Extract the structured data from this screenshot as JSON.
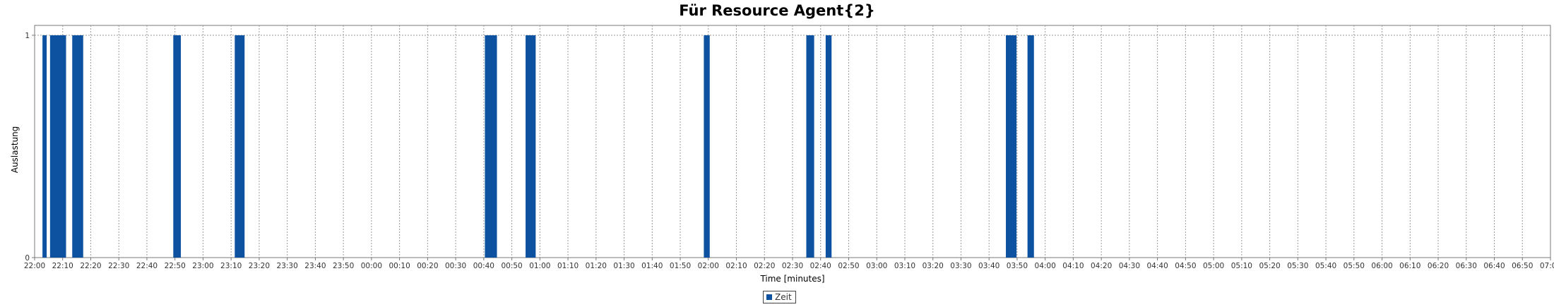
{
  "chart_data": {
    "type": "bar",
    "title": "Für Resource Agent{2}",
    "xlabel": "Time [minutes]",
    "ylabel": "Auslastung",
    "ylim": [
      0,
      1
    ],
    "yticks": [
      "0",
      "1"
    ],
    "x_range_minutes": [
      0,
      540
    ],
    "x_ticks": [
      "22:00",
      "22:10",
      "22:20",
      "22:30",
      "22:40",
      "22:50",
      "23:00",
      "23:10",
      "23:20",
      "23:30",
      "23:40",
      "23:50",
      "00:00",
      "00:10",
      "00:20",
      "00:30",
      "00:40",
      "00:50",
      "01:00",
      "01:10",
      "01:20",
      "01:30",
      "01:40",
      "01:50",
      "02:00",
      "02:10",
      "02:20",
      "02:30",
      "02:40",
      "02:50",
      "03:00",
      "03:10",
      "03:20",
      "03:30",
      "03:40",
      "03:50",
      "04:00",
      "04:10",
      "04:20",
      "04:30",
      "04:40",
      "04:50",
      "05:00",
      "05:10",
      "05:20",
      "05:30",
      "05:40",
      "05:50",
      "06:00",
      "06:10",
      "06:20",
      "06:30",
      "06:40",
      "06:50",
      "07:00"
    ],
    "grid": true,
    "legend_position": "bottom",
    "series": [
      {
        "name": "Zeit",
        "color": "#0c52a0",
        "bars": [
          {
            "start": 2.8,
            "end": 4.3,
            "value": 1
          },
          {
            "start": 5.5,
            "end": 11.2,
            "value": 1
          },
          {
            "start": 13.4,
            "end": 17.3,
            "value": 1
          },
          {
            "start": 49.4,
            "end": 52.1,
            "value": 1
          },
          {
            "start": 71.3,
            "end": 74.8,
            "value": 1
          },
          {
            "start": 160.4,
            "end": 164.7,
            "value": 1
          },
          {
            "start": 174.9,
            "end": 178.5,
            "value": 1
          },
          {
            "start": 238.4,
            "end": 240.5,
            "value": 1
          },
          {
            "start": 274.9,
            "end": 277.7,
            "value": 1
          },
          {
            "start": 281.8,
            "end": 283.9,
            "value": 1
          },
          {
            "start": 346.0,
            "end": 349.8,
            "value": 1
          },
          {
            "start": 353.7,
            "end": 356.0,
            "value": 1
          }
        ]
      }
    ]
  }
}
